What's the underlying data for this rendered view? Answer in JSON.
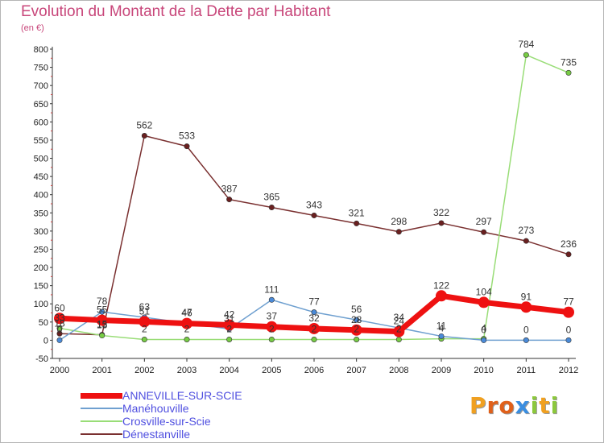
{
  "header": {
    "title": "Evolution du Montant de la Dette par Habitant",
    "subtitle": "(en €)"
  },
  "logo": {
    "text": "Proxiti",
    "letters": [
      {
        "ch": "P",
        "color": "#f0a020"
      },
      {
        "ch": "r",
        "color": "#e0601a"
      },
      {
        "ch": "o",
        "color": "#e0601a"
      },
      {
        "ch": "x",
        "color": "#3a8ee0"
      },
      {
        "ch": "i",
        "color": "#8cc83c"
      },
      {
        "ch": "t",
        "color": "#f0a020"
      },
      {
        "ch": "i",
        "color": "#8cc83c"
      }
    ]
  },
  "chart_data": {
    "type": "line",
    "title": "Evolution du Montant de la Dette par Habitant",
    "subtitle": "(en €)",
    "x": [
      "2000",
      "2001",
      "2002",
      "2003",
      "2004",
      "2005",
      "2006",
      "2007",
      "2008",
      "2009",
      "2010",
      "2011",
      "2012"
    ],
    "ylim": [
      -50,
      800
    ],
    "yticks": [
      -50,
      0,
      50,
      100,
      150,
      200,
      250,
      300,
      350,
      400,
      450,
      500,
      550,
      600,
      650,
      700,
      750,
      800
    ],
    "grid": false,
    "legend_position": "bottom-left",
    "series": [
      {
        "name": "ANNEVILLE-SUR-SCIE",
        "color": "#ee1111",
        "width": 7,
        "marker_fill": "#ee1111",
        "values": [
          60,
          55,
          51,
          46,
          42,
          37,
          32,
          28,
          24,
          122,
          104,
          91,
          77
        ],
        "labels": [
          "60",
          "55",
          "51",
          "46",
          "42",
          "37",
          "32",
          "28",
          "24",
          "122",
          "104",
          "91",
          "77"
        ]
      },
      {
        "name": "Manéhouville",
        "color": "#6fa0d0",
        "width": 1.5,
        "marker_fill": "#4a8ad8",
        "values": [
          0,
          78,
          63,
          47,
          31,
          111,
          77,
          56,
          34,
          11,
          0,
          0,
          0
        ],
        "labels": [
          "0",
          "78",
          "63",
          "47",
          "31",
          "111",
          "77",
          "56",
          "34",
          "11",
          "0",
          "0",
          "0"
        ]
      },
      {
        "name": "Crosville-sur-Scie",
        "color": "#99dd77",
        "width": 1.5,
        "marker_fill": "#77cc44",
        "values": [
          33,
          13,
          2,
          2,
          2,
          2,
          2,
          2,
          2,
          4,
          4,
          784,
          735
        ],
        "labels": [
          "33",
          "13",
          "2",
          "2",
          "2",
          "2",
          "2",
          "2",
          "2",
          "4",
          "4",
          "784",
          "735"
        ]
      },
      {
        "name": "Dénestanville",
        "color": "#7a3030",
        "width": 1.5,
        "marker_fill": "#6a2020",
        "values": [
          18,
          15,
          562,
          533,
          387,
          365,
          343,
          321,
          298,
          322,
          297,
          273,
          236
        ],
        "labels": [
          "18",
          "15",
          "562",
          "533",
          "387",
          "365",
          "343",
          "321",
          "298",
          "322",
          "297",
          "273",
          "236"
        ]
      }
    ]
  }
}
